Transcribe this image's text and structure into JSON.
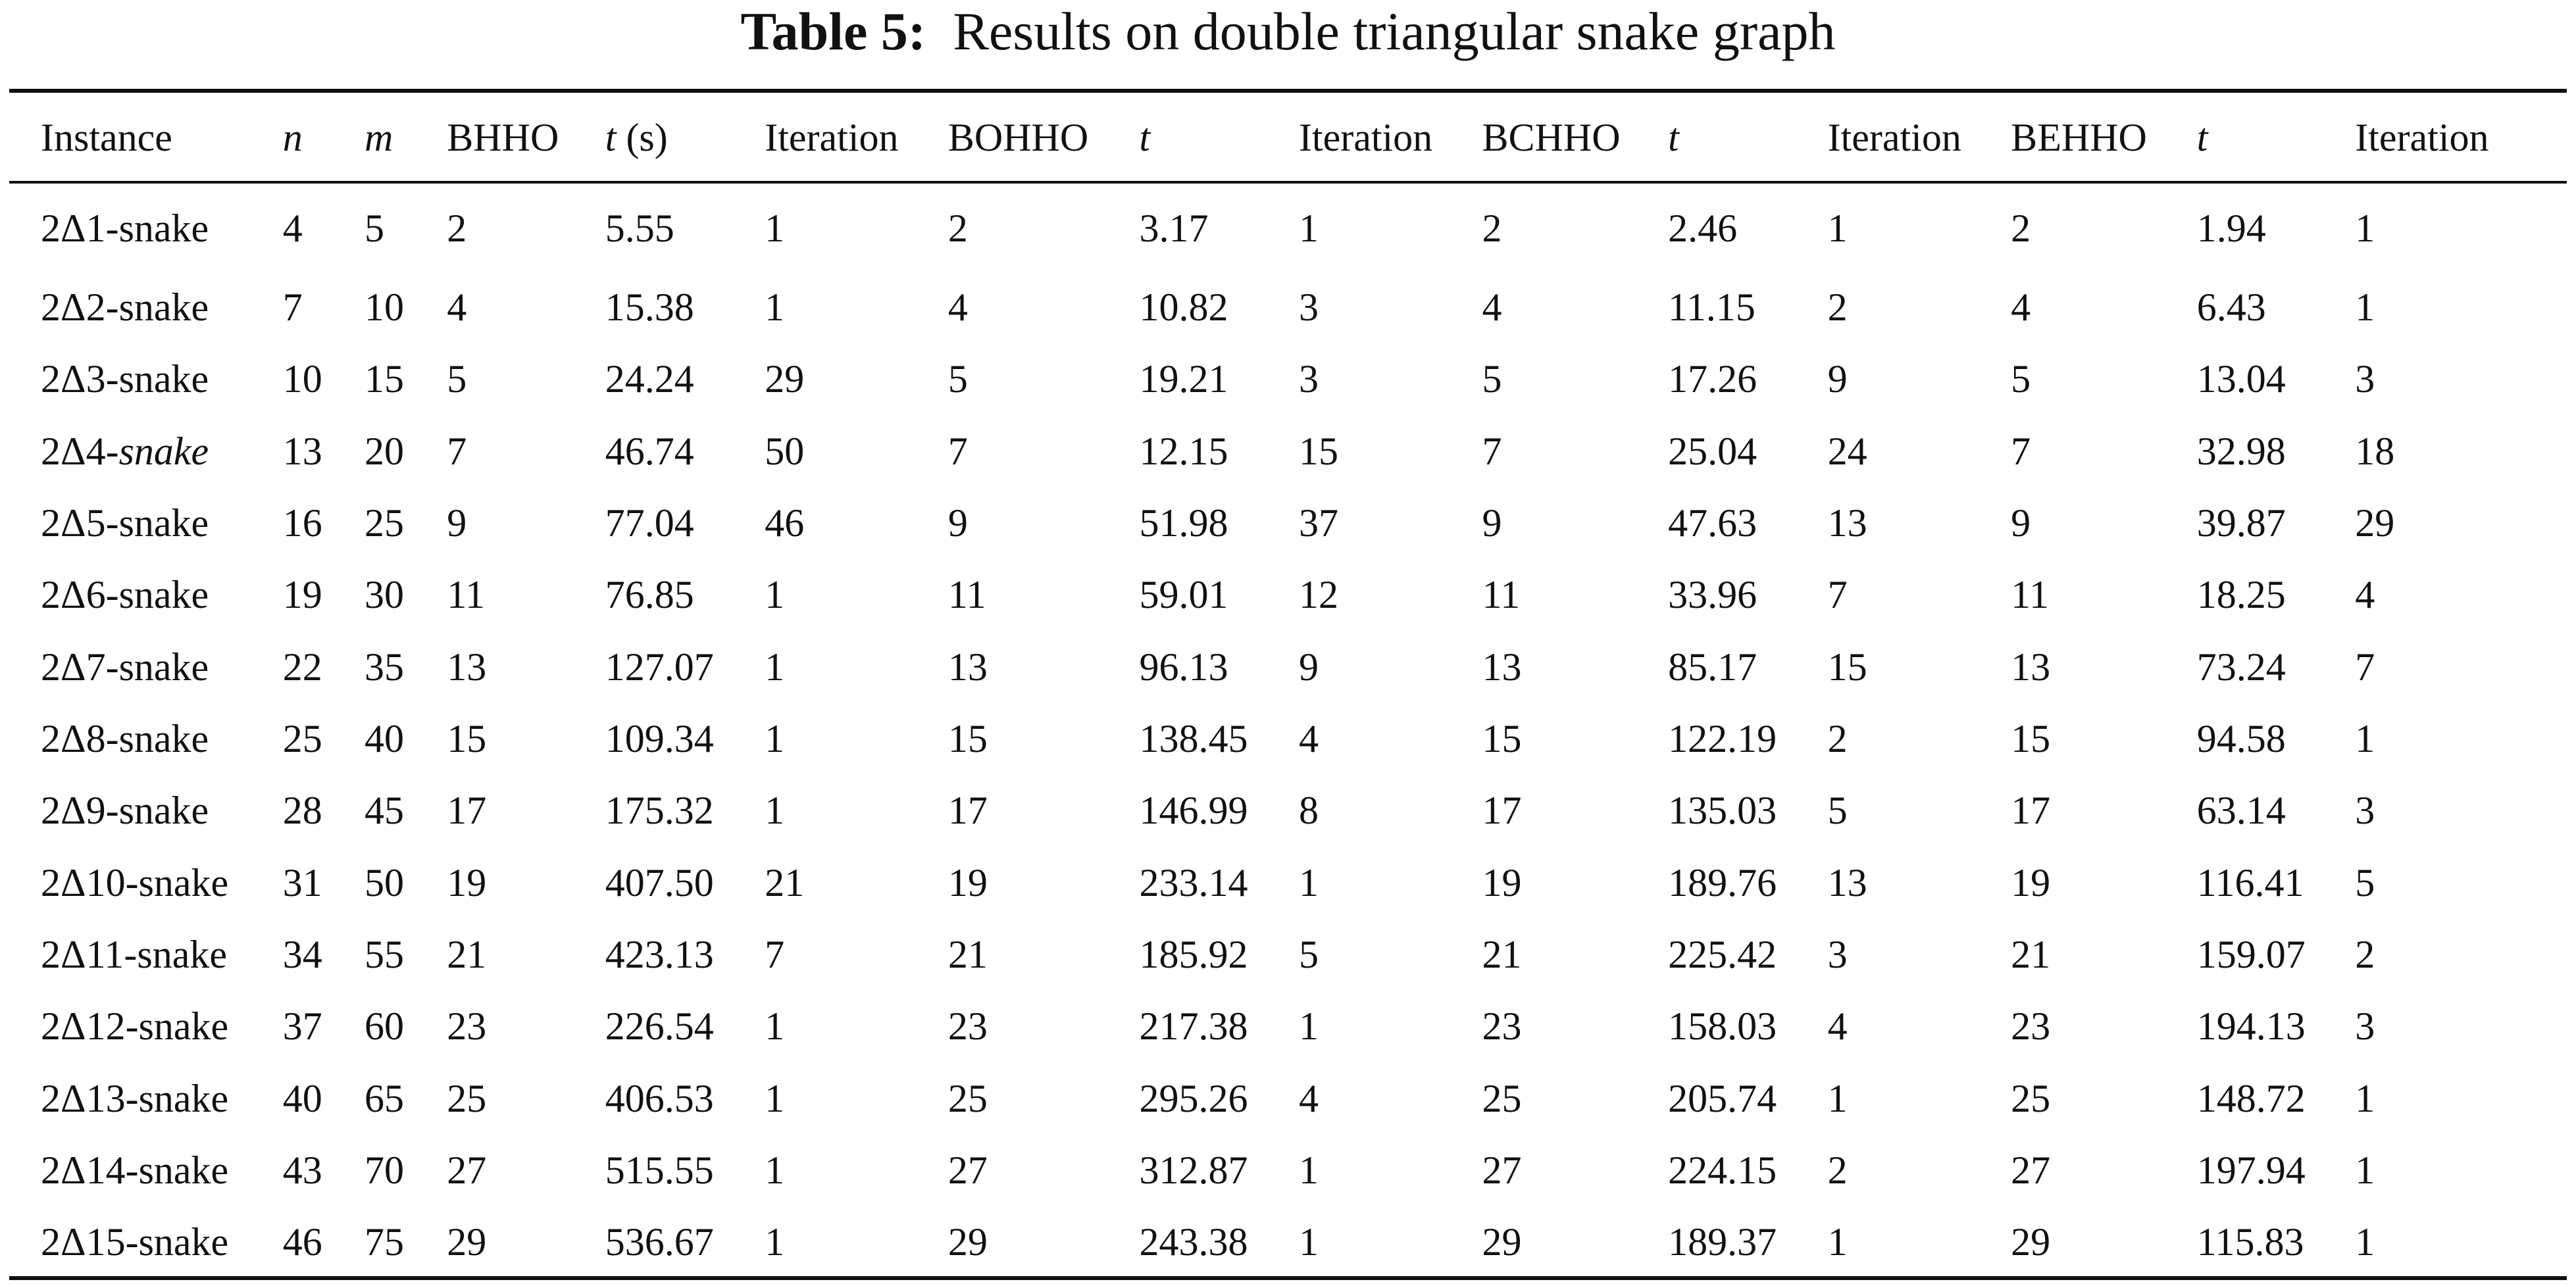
{
  "caption": {
    "label": "Table 5:",
    "title": "Results on double triangular snake graph"
  },
  "columns": [
    {
      "key": "instance",
      "label": "Instance",
      "italic": false
    },
    {
      "key": "n",
      "label": "n",
      "italic": true
    },
    {
      "key": "m",
      "label": "m",
      "italic": true
    },
    {
      "key": "bhho",
      "label": "BHHO",
      "italic": false
    },
    {
      "key": "bhho_t",
      "label": "t",
      "unit": " (s)",
      "italic": true
    },
    {
      "key": "bhho_iter",
      "label": "Iteration",
      "italic": false
    },
    {
      "key": "bohho",
      "label": "BOHHO",
      "italic": false
    },
    {
      "key": "bohho_t",
      "label": "t",
      "italic": true
    },
    {
      "key": "bohho_iter",
      "label": "Iteration",
      "italic": false
    },
    {
      "key": "bchho",
      "label": "BCHHO",
      "italic": false
    },
    {
      "key": "bchho_t",
      "label": "t",
      "italic": true
    },
    {
      "key": "bchho_iter",
      "label": "Iteration",
      "italic": false
    },
    {
      "key": "behho",
      "label": "BEHHO",
      "italic": false
    },
    {
      "key": "behho_t",
      "label": "t",
      "italic": true
    },
    {
      "key": "behho_iter",
      "label": "Iteration",
      "italic": false
    }
  ],
  "rows": [
    {
      "prefix": "2Δ1-",
      "suffix": "snake",
      "suffix_italic": false,
      "cells": [
        "4",
        "5",
        "2",
        "5.55",
        "1",
        "2",
        "3.17",
        "1",
        "2",
        "2.46",
        "1",
        "2",
        "1.94",
        "1"
      ],
      "bold": [
        12
      ]
    },
    {
      "prefix": "2Δ2-",
      "suffix": "snake",
      "suffix_italic": false,
      "cells": [
        "7",
        "10",
        "4",
        "15.38",
        "1",
        "4",
        "10.82",
        "3",
        "4",
        "11.15",
        "2",
        "4",
        "6.43",
        "1"
      ],
      "bold": [
        12
      ]
    },
    {
      "prefix": "2Δ3-",
      "suffix": "snake",
      "suffix_italic": false,
      "cells": [
        "10",
        "15",
        "5",
        "24.24",
        "29",
        "5",
        "19.21",
        "3",
        "5",
        "17.26",
        "9",
        "5",
        "13.04",
        "3"
      ],
      "bold": [
        12
      ]
    },
    {
      "prefix": "2Δ4-",
      "suffix": "snake",
      "suffix_italic": true,
      "cells": [
        "13",
        "20",
        "7",
        "46.74",
        "50",
        "7",
        "12.15",
        "15",
        "7",
        "25.04",
        "24",
        "7",
        "32.98",
        "18"
      ],
      "bold": [
        6
      ]
    },
    {
      "prefix": "2Δ5-",
      "suffix": "snake",
      "suffix_italic": false,
      "cells": [
        "16",
        "25",
        "9",
        "77.04",
        "46",
        "9",
        "51.98",
        "37",
        "9",
        "47.63",
        "13",
        "9",
        "39.87",
        "29"
      ],
      "bold": [
        12
      ]
    },
    {
      "prefix": "2Δ6-",
      "suffix": "snake",
      "suffix_italic": false,
      "cells": [
        "19",
        "30",
        "11",
        "76.85",
        "1",
        "11",
        "59.01",
        "12",
        "11",
        "33.96",
        "7",
        "11",
        "18.25",
        "4"
      ],
      "bold": [
        12
      ]
    },
    {
      "prefix": "2Δ7-",
      "suffix": "snake",
      "suffix_italic": false,
      "cells": [
        "22",
        "35",
        "13",
        "127.07",
        "1",
        "13",
        "96.13",
        "9",
        "13",
        "85.17",
        "15",
        "13",
        "73.24",
        "7"
      ],
      "bold": [
        12
      ]
    },
    {
      "prefix": "2Δ8-",
      "suffix": "snake",
      "suffix_italic": false,
      "cells": [
        "25",
        "40",
        "15",
        "109.34",
        "1",
        "15",
        "138.45",
        "4",
        "15",
        "122.19",
        "2",
        "15",
        "94.58",
        "1"
      ],
      "bold": [
        12
      ]
    },
    {
      "prefix": "2Δ9-",
      "suffix": "snake",
      "suffix_italic": false,
      "cells": [
        "28",
        "45",
        "17",
        "175.32",
        "1",
        "17",
        "146.99",
        "8",
        "17",
        "135.03",
        "5",
        "17",
        "63.14",
        "3"
      ],
      "bold": [
        12
      ]
    },
    {
      "prefix": "2Δ10-",
      "suffix": "snake",
      "suffix_italic": false,
      "cells": [
        "31",
        "50",
        "19",
        "407.50",
        "21",
        "19",
        "233.14",
        "1",
        "19",
        "189.76",
        "13",
        "19",
        "116.41",
        "5"
      ],
      "bold": [
        12
      ]
    },
    {
      "prefix": "2Δ11-",
      "suffix": "snake",
      "suffix_italic": false,
      "cells": [
        "34",
        "55",
        "21",
        "423.13",
        "7",
        "21",
        "185.92",
        "5",
        "21",
        "225.42",
        "3",
        "21",
        "159.07",
        "2"
      ],
      "bold": [
        12
      ]
    },
    {
      "prefix": "2Δ12-",
      "suffix": "snake",
      "suffix_italic": false,
      "cells": [
        "37",
        "60",
        "23",
        "226.54",
        "1",
        "23",
        "217.38",
        "1",
        "23",
        "158.03",
        "4",
        "23",
        "194.13",
        "3"
      ],
      "bold": [
        9
      ]
    },
    {
      "prefix": "2Δ13-",
      "suffix": "snake",
      "suffix_italic": false,
      "cells": [
        "40",
        "65",
        "25",
        "406.53",
        "1",
        "25",
        "295.26",
        "4",
        "25",
        "205.74",
        "1",
        "25",
        "148.72",
        "1"
      ],
      "bold": [
        12
      ]
    },
    {
      "prefix": "2Δ14-",
      "suffix": "snake",
      "suffix_italic": false,
      "cells": [
        "43",
        "70",
        "27",
        "515.55",
        "1",
        "27",
        "312.87",
        "1",
        "27",
        "224.15",
        "2",
        "27",
        "197.94",
        "1"
      ],
      "bold": [
        12
      ]
    },
    {
      "prefix": "2Δ15-",
      "suffix": "snake",
      "suffix_italic": false,
      "cells": [
        "46",
        "75",
        "29",
        "536.67",
        "1",
        "29",
        "243.38",
        "1",
        "29",
        "189.37",
        "1",
        "29",
        "115.83",
        "1"
      ],
      "bold": [
        12
      ]
    }
  ]
}
